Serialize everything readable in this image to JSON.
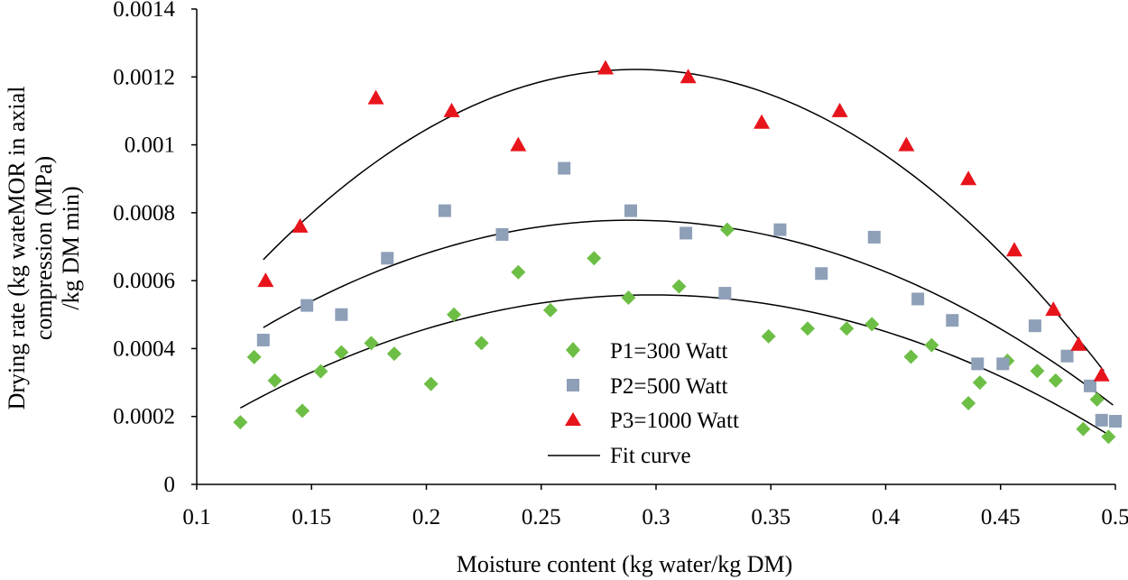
{
  "chart_data": {
    "type": "scatter",
    "title": "",
    "xlabel": "Moisture content (kg water/kg DM)",
    "ylabel_lines": [
      "Drying rate (kg wateMOR in axial",
      "compression (MPa)",
      "/kg DM min)"
    ],
    "xlim": [
      0.1,
      0.5
    ],
    "ylim": [
      0,
      0.0014
    ],
    "x_ticks": [
      "0.1",
      "0.15",
      "0.2",
      "0.25",
      "0.3",
      "0.35",
      "0.4",
      "0.45",
      "0.5"
    ],
    "y_ticks": [
      "0",
      "0.0002",
      "0.0004",
      "0.0006",
      "0.0008",
      "0.001",
      "0.0012",
      "0.0014"
    ],
    "grid": false,
    "legend_position": "bottom-center",
    "series": [
      {
        "name": "P1=300 Watt",
        "marker": "diamond",
        "color": "#6DBE45",
        "x": [
          0.119,
          0.125,
          0.134,
          0.146,
          0.154,
          0.163,
          0.176,
          0.186,
          0.202,
          0.212,
          0.224,
          0.24,
          0.254,
          0.273,
          0.288,
          0.31,
          0.331,
          0.349,
          0.366,
          0.383,
          0.394,
          0.411,
          0.42,
          0.436,
          0.441,
          0.453,
          0.466,
          0.474,
          0.486,
          0.492,
          0.497
        ],
        "y": [
          0.000183,
          0.000375,
          0.000306,
          0.000217,
          0.000333,
          0.000389,
          0.000416,
          0.000385,
          0.000296,
          0.0005,
          0.000416,
          0.000625,
          0.000513,
          0.000666,
          0.00055,
          0.000583,
          0.00075,
          0.000436,
          0.000459,
          0.000459,
          0.000472,
          0.000376,
          0.00041,
          0.000239,
          0.0003,
          0.000364,
          0.000334,
          0.000306,
          0.000163,
          0.00025,
          0.00014
        ]
      },
      {
        "name": "P2=500 Watt",
        "marker": "square",
        "color": "#8E9FB8",
        "x": [
          0.129,
          0.148,
          0.163,
          0.183,
          0.208,
          0.233,
          0.26,
          0.289,
          0.313,
          0.33,
          0.354,
          0.372,
          0.395,
          0.414,
          0.429,
          0.44,
          0.451,
          0.465,
          0.479,
          0.489,
          0.494,
          0.5
        ],
        "y": [
          0.000425,
          0.000527,
          0.0005,
          0.000666,
          0.000806,
          0.000736,
          0.000931,
          0.000806,
          0.00074,
          0.000563,
          0.00075,
          0.000621,
          0.000728,
          0.000546,
          0.000483,
          0.000355,
          0.000355,
          0.000467,
          0.000378,
          0.00029,
          0.000189,
          0.000186
        ]
      },
      {
        "name": "P3=1000 Watt",
        "marker": "triangle",
        "color": "#E8141B",
        "x": [
          0.13,
          0.145,
          0.178,
          0.211,
          0.24,
          0.278,
          0.314,
          0.346,
          0.38,
          0.409,
          0.436,
          0.456,
          0.473,
          0.484,
          0.494
        ],
        "y": [
          0.0006,
          0.00076,
          0.001138,
          0.0011,
          0.001,
          0.001226,
          0.0012,
          0.001066,
          0.0011,
          0.001,
          0.0009,
          0.00069,
          0.000515,
          0.000412,
          0.000322
        ]
      }
    ],
    "fit_curves": [
      {
        "name": "Fit curve",
        "for": "P1=300 Watt",
        "vertex_x": 0.298,
        "vertex_y": 0.000558,
        "x_range": [
          0.119,
          0.497
        ],
        "y_at_start": 0.000225
      },
      {
        "name": "Fit curve",
        "for": "P2=500 Watt",
        "vertex_x": 0.289,
        "vertex_y": 0.000778,
        "x_range": [
          0.129,
          0.499
        ],
        "y_at_start": 0.000462
      },
      {
        "name": "Fit curve",
        "for": "P3=1000 Watt",
        "vertex_x": 0.291,
        "vertex_y": 0.001222,
        "x_range": [
          0.129,
          0.495
        ],
        "y_at_start": 0.000662
      }
    ],
    "legend": {
      "entries": [
        "P1=300 Watt",
        "P2=500 Watt",
        "P3=1000 Watt",
        "Fit curve"
      ]
    }
  }
}
